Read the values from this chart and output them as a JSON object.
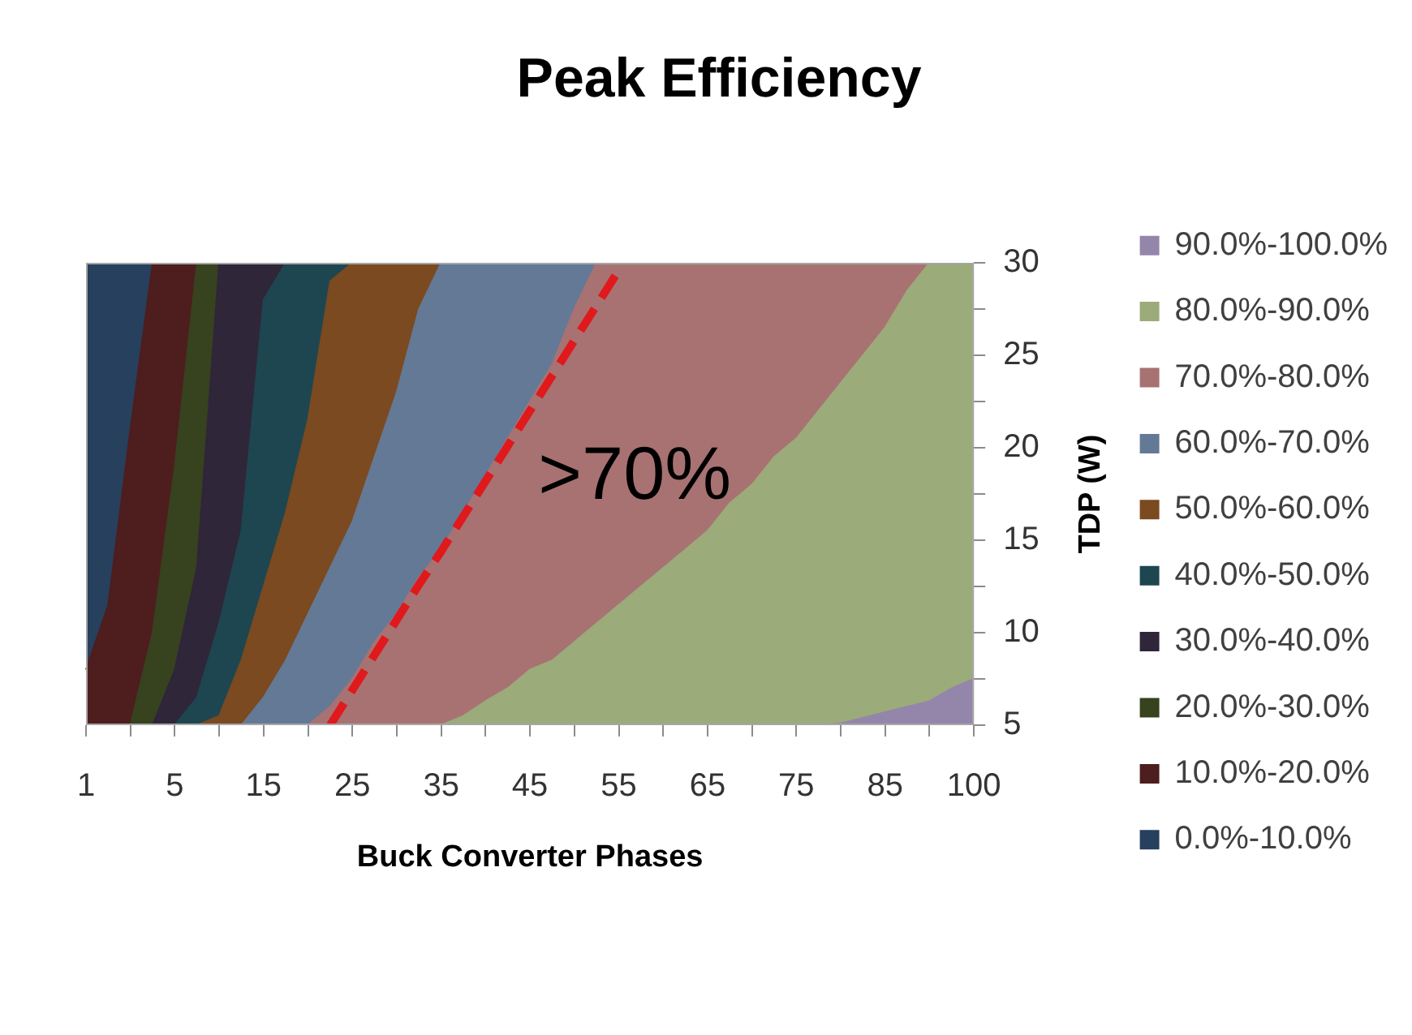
{
  "chart_data": {
    "type": "area",
    "title": "Peak Efficiency",
    "xlabel": "Buck Converter Phases",
    "ylabel": "TDP (W)",
    "categories": [
      "1",
      null,
      null,
      null,
      "5",
      null,
      null,
      null,
      "15",
      null,
      null,
      null,
      "25",
      null,
      null,
      null,
      "35",
      null,
      null,
      null,
      "45",
      null,
      null,
      null,
      "55",
      null,
      null,
      null,
      "65",
      null,
      null,
      null,
      "75",
      null,
      null,
      null,
      "85",
      null,
      null,
      null,
      "100"
    ],
    "series": [
      {
        "name": "90.0%-100.0%",
        "color": "#9486ab",
        "values": [
          null,
          null,
          null,
          null,
          null,
          null,
          null,
          null,
          null,
          null,
          null,
          null,
          null,
          null,
          null,
          null,
          null,
          null,
          null,
          null,
          null,
          null,
          null,
          null,
          null,
          null,
          null,
          null,
          null,
          null,
          null,
          null,
          null,
          5,
          5.1,
          5.4,
          5.7,
          6,
          6.3,
          7,
          7.5
        ]
      },
      {
        "name": "80.0%-90.0%",
        "color": "#9bab7a",
        "values": [
          null,
          null,
          null,
          null,
          null,
          null,
          null,
          null,
          null,
          null,
          null,
          null,
          null,
          null,
          null,
          null,
          5,
          5.5,
          6.3,
          7,
          8,
          8.5,
          9.5,
          10.5,
          11.5,
          12.5,
          13.5,
          14.5,
          15.5,
          17,
          18,
          19.5,
          20.5,
          22,
          23.5,
          25,
          26.5,
          28.5,
          30,
          30,
          30
        ]
      },
      {
        "name": "70.0%-80.0%",
        "color": "#a87272",
        "values": [
          null,
          null,
          null,
          null,
          null,
          null,
          null,
          null,
          null,
          null,
          5,
          6,
          7.5,
          9.5,
          11,
          13,
          14.5,
          16.5,
          18.5,
          20.5,
          22.5,
          24.5,
          27.5,
          30,
          30,
          30,
          30,
          30,
          30,
          30,
          30,
          30,
          30,
          30,
          30,
          30,
          30,
          30,
          30,
          null,
          null
        ]
      },
      {
        "name": "60.0%-70.0%",
        "color": "#647996",
        "values": [
          null,
          null,
          null,
          null,
          null,
          null,
          null,
          5,
          6.5,
          8.5,
          11,
          13.5,
          16,
          19.5,
          23,
          27.5,
          30,
          30,
          30,
          30,
          30,
          30,
          30,
          30,
          null,
          null,
          null,
          null,
          null,
          null,
          null,
          null,
          null,
          null,
          null,
          null,
          null,
          null,
          null,
          null,
          null
        ]
      },
      {
        "name": "50.0%-60.0%",
        "color": "#7b4a20",
        "values": [
          null,
          null,
          null,
          null,
          null,
          5,
          5.5,
          8.5,
          12.5,
          16.5,
          21.5,
          29,
          30,
          30,
          30,
          30,
          30,
          null,
          null,
          null,
          null,
          null,
          null,
          null,
          null,
          null,
          null,
          null,
          null,
          null,
          null,
          null,
          null,
          null,
          null,
          null,
          null,
          null,
          null,
          null,
          null
        ]
      },
      {
        "name": "40.0%-50.0%",
        "color": "#1e4650",
        "values": [
          null,
          null,
          null,
          null,
          5,
          6.5,
          10.5,
          15.5,
          28,
          30,
          30,
          30,
          30,
          null,
          null,
          null,
          null,
          null,
          null,
          null,
          null,
          null,
          null,
          null,
          null,
          null,
          null,
          null,
          null,
          null,
          null,
          null,
          null,
          null,
          null,
          null,
          null,
          null,
          null,
          null,
          null
        ]
      },
      {
        "name": "30.0%-40.0%",
        "color": "#2f2639",
        "values": [
          null,
          null,
          null,
          5,
          8,
          13.5,
          30,
          30,
          30,
          30,
          null,
          null,
          null,
          null,
          null,
          null,
          null,
          null,
          null,
          null,
          null,
          null,
          null,
          null,
          null,
          null,
          null,
          null,
          null,
          null,
          null,
          null,
          null,
          null,
          null,
          null,
          null,
          null,
          null,
          null,
          null
        ]
      },
      {
        "name": "20.0%-30.0%",
        "color": "#37421f",
        "values": [
          null,
          null,
          5,
          10,
          19,
          30,
          30,
          null,
          null,
          null,
          null,
          null,
          null,
          null,
          null,
          null,
          null,
          null,
          null,
          null,
          null,
          null,
          null,
          null,
          null,
          null,
          null,
          null,
          null,
          null,
          null,
          null,
          null,
          null,
          null,
          null,
          null,
          null,
          null,
          null,
          null
        ]
      },
      {
        "name": "10.0%-20.0%",
        "color": "#4e1d1d",
        "values": [
          8,
          11.5,
          21,
          30,
          30,
          30,
          null,
          null,
          null,
          null,
          null,
          null,
          null,
          null,
          null,
          null,
          null,
          null,
          null,
          null,
          null,
          null,
          null,
          null,
          null,
          null,
          null,
          null,
          null,
          null,
          null,
          null,
          null,
          null,
          null,
          null,
          null,
          null,
          null,
          null,
          null
        ]
      },
      {
        "name": "0.0%-10.0%",
        "color": "#26405e",
        "values": [
          30,
          30,
          30,
          30,
          null,
          null,
          null,
          null,
          null,
          null,
          null,
          null,
          null,
          null,
          null,
          null,
          null,
          null,
          null,
          null,
          null,
          null,
          null,
          null,
          null,
          null,
          null,
          null,
          null,
          null,
          null,
          null,
          null,
          null,
          null,
          null,
          null,
          null,
          null,
          null,
          null
        ]
      },
      {
        "type": "line",
        "color": "#e0191c",
        "line_style": "dashed",
        "values": [
          null,
          null,
          null,
          null,
          null,
          null,
          null,
          null,
          null,
          null,
          null,
          5,
          6.9,
          8.8,
          10.7,
          12.6,
          14.4,
          16.3,
          18.2,
          20.1,
          22,
          23.9,
          25.8,
          27.7,
          29.6,
          null,
          null,
          null,
          null,
          null,
          null,
          null,
          null,
          null,
          null,
          null,
          null,
          null,
          null,
          null,
          null
        ]
      }
    ],
    "ylim": [
      5,
      30
    ],
    "yticks": [
      5,
      {
        "value": 7.5,
        "label": null
      },
      10,
      {
        "value": 12.5,
        "label": null
      },
      15,
      {
        "value": 17.5,
        "label": null
      },
      20,
      {
        "value": 22.5,
        "label": null
      },
      25,
      {
        "value": 27.5,
        "label": null
      },
      30
    ],
    "legend": "right",
    "annotations": [
      ">70%"
    ]
  }
}
